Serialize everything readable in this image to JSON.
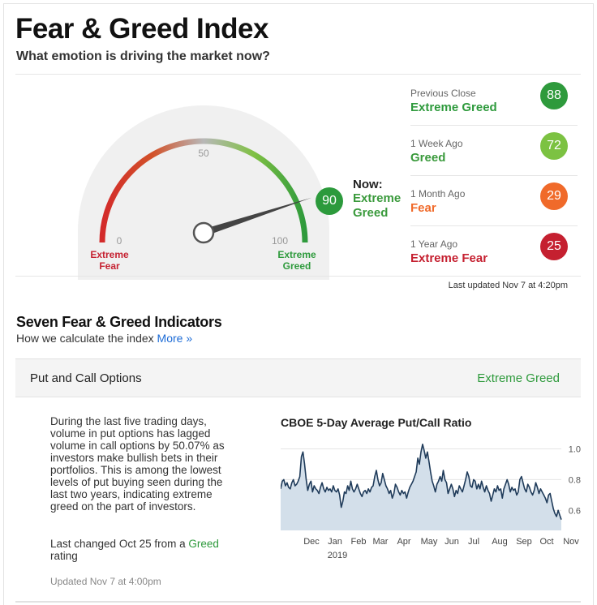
{
  "header": {
    "title": "Fear & Greed Index",
    "subtitle": "What emotion is driving the market now?"
  },
  "gauge": {
    "value": 90,
    "min_label": "0",
    "mid_label": "50",
    "max_label": "100",
    "left_label_1": "Extreme",
    "left_label_2": "Fear",
    "right_label_1": "Extreme",
    "right_label_2": "Greed",
    "now_label": "Now:",
    "now_desc_1": "Extreme",
    "now_desc_2": "Greed",
    "now_value": "90"
  },
  "history": [
    {
      "label": "Previous Close",
      "desc": "Extreme Greed",
      "value": "88",
      "desc_color": "#2e9a3c",
      "circle_color": "#2e9a3c"
    },
    {
      "label": "1 Week Ago",
      "desc": "Greed",
      "value": "72",
      "desc_color": "#3a9a3c",
      "circle_color": "#7cc242"
    },
    {
      "label": "1 Month Ago",
      "desc": "Fear",
      "value": "29",
      "desc_color": "#f06a2a",
      "circle_color": "#f06a2a"
    },
    {
      "label": "1 Year Ago",
      "desc": "Extreme Fear",
      "value": "25",
      "desc_color": "#c52030",
      "circle_color": "#c52030"
    }
  ],
  "last_updated": "Last updated Nov 7 at 4:20pm",
  "section": {
    "title": "Seven Fear & Greed Indicators",
    "subtitle": "How we calculate the index",
    "more_link": "More »"
  },
  "indicator": {
    "name": "Put and Call Options",
    "rating": "Extreme Greed",
    "description": "During the last five trading days, volume in put options has lagged volume in call options by 50.07% as investors make bullish bets in their portfolios. This is among the lowest levels of put buying seen during the last two years, indicating extreme greed on the part of investors.",
    "changed_prefix": "Last changed Oct 25 from a ",
    "changed_rating": "Greed",
    "changed_suffix": " rating",
    "updated": "Updated Nov 7 at 4:00pm"
  },
  "chart_data": {
    "type": "area",
    "title": "CBOE 5-Day Average Put/Call Ratio",
    "x_labels": [
      "Dec",
      "Jan",
      "Feb",
      "Mar",
      "Apr",
      "May",
      "Jun",
      "Jul",
      "Aug",
      "Sep",
      "Oct",
      "Nov"
    ],
    "year_label": "2019",
    "y_ticks": [
      "1.0",
      "0.8",
      "0.6"
    ],
    "ylim": [
      0.47,
      1.05
    ],
    "line_color": "#1f3b5a",
    "fill_color": "#d3dfea",
    "values": [
      0.74,
      0.79,
      0.8,
      0.76,
      0.78,
      0.75,
      0.74,
      0.78,
      0.8,
      0.76,
      0.77,
      0.79,
      0.82,
      0.95,
      0.98,
      0.9,
      0.8,
      0.73,
      0.77,
      0.79,
      0.72,
      0.76,
      0.74,
      0.73,
      0.71,
      0.75,
      0.78,
      0.74,
      0.72,
      0.75,
      0.73,
      0.74,
      0.72,
      0.76,
      0.73,
      0.72,
      0.74,
      0.7,
      0.62,
      0.66,
      0.72,
      0.71,
      0.76,
      0.73,
      0.79,
      0.74,
      0.72,
      0.74,
      0.77,
      0.74,
      0.71,
      0.69,
      0.72,
      0.73,
      0.71,
      0.74,
      0.72,
      0.75,
      0.76,
      0.82,
      0.86,
      0.8,
      0.76,
      0.78,
      0.84,
      0.8,
      0.76,
      0.74,
      0.71,
      0.73,
      0.68,
      0.71,
      0.77,
      0.75,
      0.72,
      0.7,
      0.73,
      0.71,
      0.72,
      0.68,
      0.72,
      0.75,
      0.77,
      0.79,
      0.82,
      0.85,
      0.94,
      0.9,
      0.98,
      1.03,
      0.99,
      0.94,
      0.98,
      0.92,
      0.85,
      0.79,
      0.76,
      0.72,
      0.77,
      0.79,
      0.82,
      0.79,
      0.86,
      0.8,
      0.78,
      0.71,
      0.74,
      0.77,
      0.74,
      0.69,
      0.73,
      0.71,
      0.76,
      0.74,
      0.72,
      0.76,
      0.8,
      0.85,
      0.82,
      0.76,
      0.75,
      0.8,
      0.79,
      0.74,
      0.77,
      0.74,
      0.79,
      0.75,
      0.72,
      0.76,
      0.73,
      0.71,
      0.66,
      0.7,
      0.74,
      0.72,
      0.76,
      0.73,
      0.74,
      0.68,
      0.74,
      0.77,
      0.8,
      0.77,
      0.72,
      0.75,
      0.73,
      0.74,
      0.7,
      0.72,
      0.8,
      0.82,
      0.78,
      0.74,
      0.72,
      0.77,
      0.75,
      0.72,
      0.7,
      0.73,
      0.78,
      0.75,
      0.71,
      0.74,
      0.72,
      0.7,
      0.68,
      0.65,
      0.7,
      0.71,
      0.66,
      0.61,
      0.58,
      0.56,
      0.6,
      0.57,
      0.54
    ]
  }
}
